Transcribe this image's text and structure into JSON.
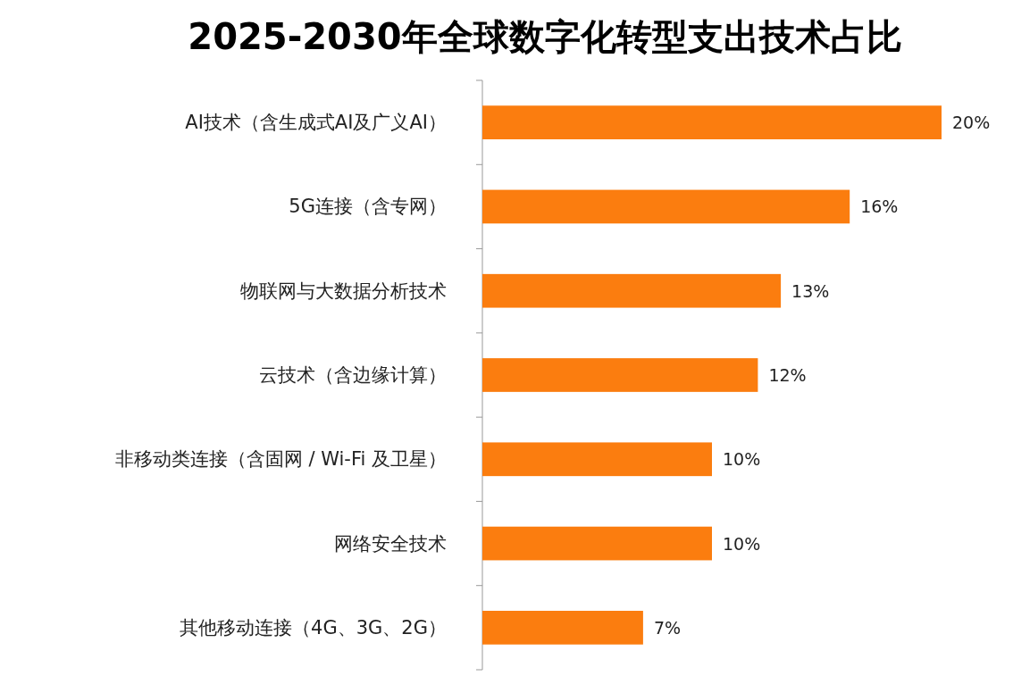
{
  "chart_data": {
    "type": "bar",
    "orientation": "horizontal",
    "title": "2025-2030年全球数字化转型支出技术占比",
    "categories": [
      "AI技术（含生成式AI及广义AI）",
      "5G连接（含专网）",
      "物联网与大数据分析技术",
      "云技术（含边缘计算）",
      "非移动类连接（含固网 / Wi-Fi 及卫星）",
      "网络安全技术",
      "其他移动连接（4G、3G、2G）"
    ],
    "values": [
      20,
      16,
      13,
      12,
      10,
      10,
      7
    ],
    "value_labels": [
      "20%",
      "16%",
      "13%",
      "12%",
      "10%",
      "10%",
      "7%"
    ],
    "color": "#fb7d0f"
  }
}
